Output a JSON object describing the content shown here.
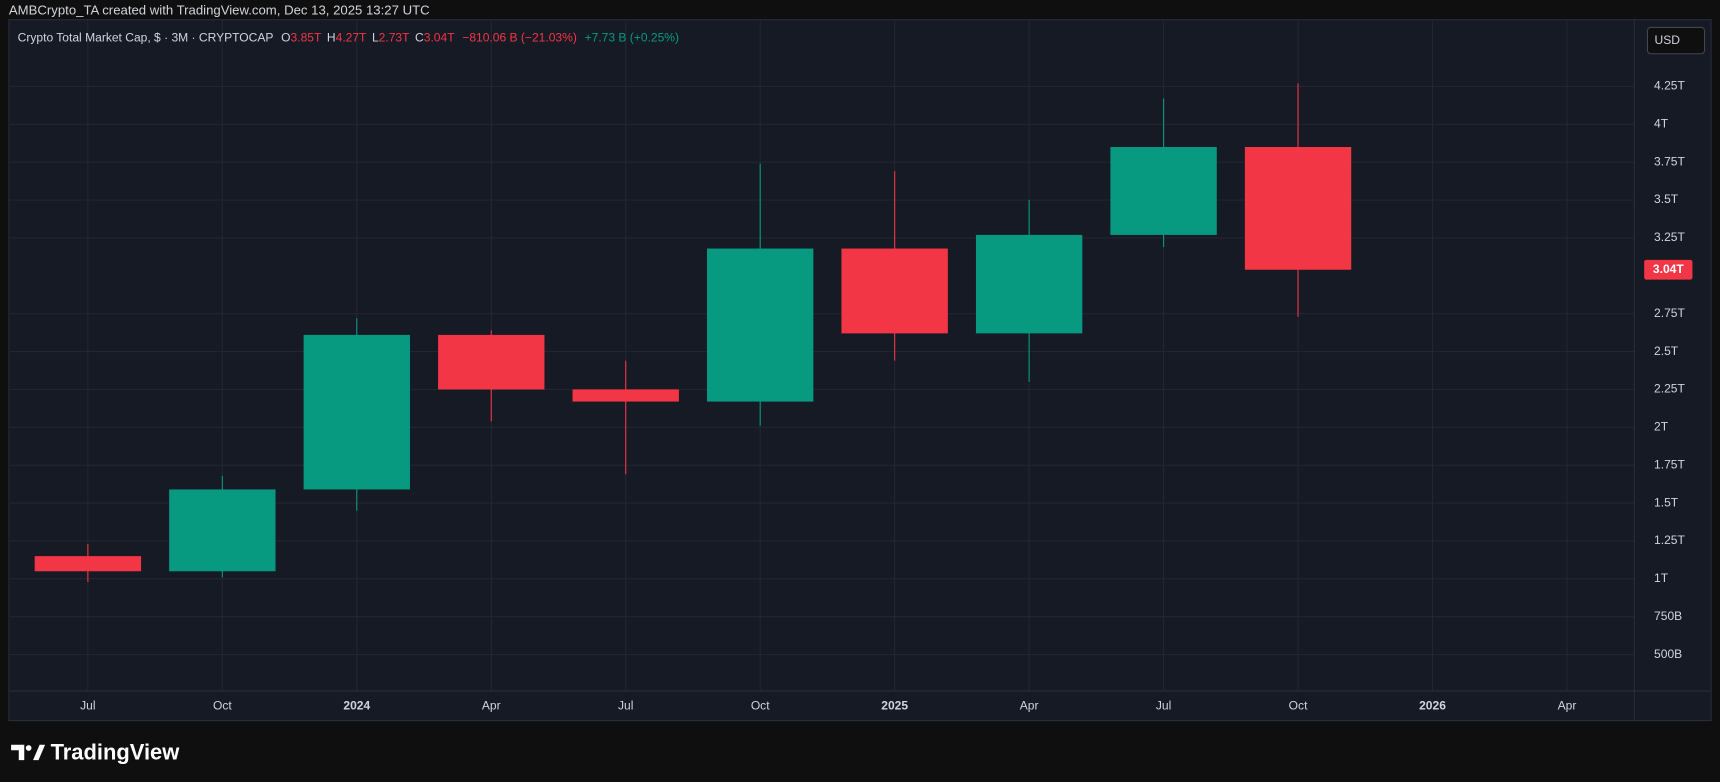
{
  "header": {
    "author_line": "AMBCrypto_TA created with TradingView.com, Dec 13, 2025 13:27 UTC",
    "symbol": "Crypto Total Market Cap, $ · 3M · CRYPTOCAP",
    "ohlc": [
      {
        "key": "O",
        "value": "3.85T"
      },
      {
        "key": "H",
        "value": "4.27T"
      },
      {
        "key": "L",
        "value": "2.73T"
      },
      {
        "key": "C",
        "value": "3.04T"
      }
    ],
    "change": "−810.06 B (−21.03%)",
    "volume_change": "+7.73 B (+0.25%)",
    "currency": "USD"
  },
  "footer": {
    "brand": "TradingView"
  },
  "chart_data": {
    "type": "candlestick",
    "categories": [
      "Jul",
      "Oct",
      "2024",
      "Apr",
      "Jul",
      "Oct",
      "2025",
      "Apr",
      "Jul",
      "Oct",
      "2026",
      "Apr"
    ],
    "bold_categories": [
      "2024",
      "2025",
      "2026"
    ],
    "series": {
      "open": [
        1.15,
        1.05,
        1.59,
        2.61,
        2.25,
        2.17,
        3.18,
        2.62,
        3.27,
        3.85,
        null,
        null
      ],
      "high": [
        1.23,
        1.68,
        2.72,
        2.64,
        2.44,
        3.74,
        3.69,
        3.5,
        4.17,
        4.27,
        null,
        null
      ],
      "low": [
        0.98,
        1.01,
        1.45,
        2.04,
        1.69,
        2.01,
        2.44,
        2.3,
        3.19,
        2.73,
        null,
        null
      ],
      "close": [
        1.05,
        1.59,
        2.61,
        2.25,
        2.17,
        3.18,
        2.62,
        3.27,
        3.85,
        3.04,
        null,
        null
      ]
    },
    "up_color": "#089981",
    "down_color": "#f23645",
    "ylim": [
      0.26,
      4.69
    ],
    "yticks": [
      {
        "value": 0.5,
        "label": "500B"
      },
      {
        "value": 0.75,
        "label": "750B"
      },
      {
        "value": 1,
        "label": "1T"
      },
      {
        "value": 1.25,
        "label": "1.25T"
      },
      {
        "value": 1.5,
        "label": "1.5T"
      },
      {
        "value": 1.75,
        "label": "1.75T"
      },
      {
        "value": 2,
        "label": "2T"
      },
      {
        "value": 2.25,
        "label": "2.25T"
      },
      {
        "value": 2.5,
        "label": "2.5T"
      },
      {
        "value": 2.75,
        "label": "2.75T"
      },
      {
        "value": 3.25,
        "label": "3.25T"
      },
      {
        "value": 3.5,
        "label": "3.5T"
      },
      {
        "value": 3.75,
        "label": "3.75T"
      },
      {
        "value": 4,
        "label": "4T"
      },
      {
        "value": 4.25,
        "label": "4.25T"
      }
    ],
    "last_price": {
      "value": 3.04,
      "label": "3.04T"
    },
    "grid": true
  }
}
